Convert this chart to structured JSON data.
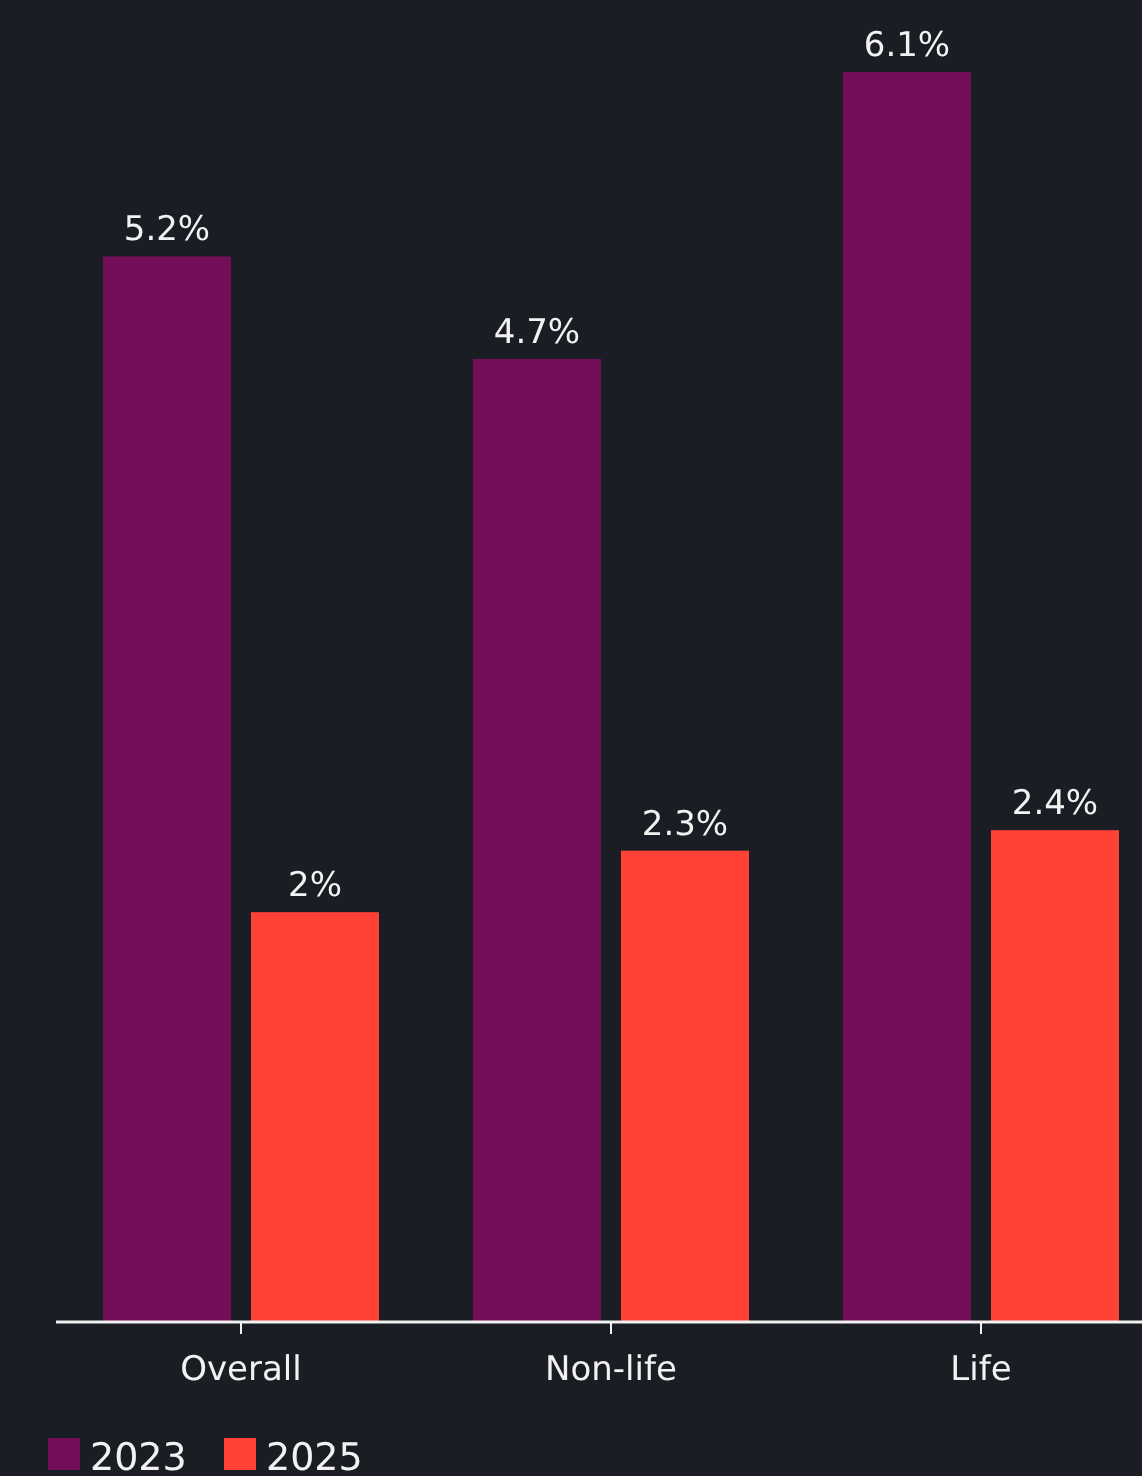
{
  "chart_data": {
    "type": "bar",
    "categories": [
      "Overall",
      "Non-life",
      "Life"
    ],
    "series": [
      {
        "name": "2023",
        "color": "#730f5a",
        "values": [
          5.2,
          4.7,
          6.1
        ],
        "value_labels": [
          "5.2%",
          "4.7%",
          "6.1%"
        ]
      },
      {
        "name": "2025",
        "color": "#ff4136",
        "values": [
          2,
          2.3,
          2.4
        ],
        "value_labels": [
          "2%",
          "2.3%",
          "2.4%"
        ]
      }
    ],
    "legend": "bottom left"
  }
}
